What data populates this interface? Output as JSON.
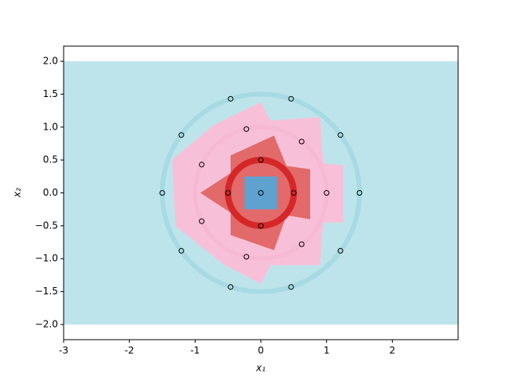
{
  "chart_data": {
    "type": "decision-regions",
    "x_label": "x₁",
    "y_label": "x₂",
    "xlim": [
      -3,
      3
    ],
    "ylim": [
      -2.23,
      2.23
    ],
    "xticks": [
      -3,
      -2,
      -1,
      0,
      1,
      2
    ],
    "yticks": [
      {
        "value": -2,
        "label": "−2.0"
      },
      {
        "value": -1.5,
        "label": "−1.5"
      },
      {
        "value": -1,
        "label": "−1.0"
      },
      {
        "value": -0.5,
        "label": "−0.5"
      },
      {
        "value": 0,
        "label": "0.0"
      },
      {
        "value": 0.5,
        "label": "0.5"
      },
      {
        "value": 1,
        "label": "1.0"
      },
      {
        "value": 1.5,
        "label": "1.5"
      },
      {
        "value": 2,
        "label": "2.0"
      }
    ],
    "regions": [
      {
        "color": "#bee4eb",
        "x": [
          -3,
          3,
          3,
          -3
        ],
        "y": [
          2,
          2,
          -2,
          -2
        ]
      },
      {
        "color": "#f8c0d8",
        "x": [
          0,
          0.15,
          0.9,
          0.95,
          1.25,
          1.25,
          0.95,
          0.9,
          0.15,
          0,
          -0.55,
          -1.3,
          -1.35,
          -0.72
        ],
        "y": [
          1.38,
          1.1,
          1.15,
          0.45,
          0.42,
          -0.45,
          -0.45,
          -1.1,
          -1.1,
          -1.38,
          -1.1,
          -0.5,
          0.5,
          1.03
        ]
      },
      {
        "color": "#e26a6a",
        "x": [
          -0.46,
          0.2,
          0.39,
          0.75,
          0.75,
          0.39,
          0.2,
          -0.46,
          -0.46,
          -0.92,
          -0.46
        ],
        "y": [
          0.57,
          0.87,
          0.41,
          0.36,
          -0.4,
          -0.34,
          -0.87,
          -0.64,
          -0.3,
          0,
          0.3
        ]
      },
      {
        "color": "#5fa1cf",
        "x": [
          -0.25,
          0.25,
          0.25,
          -0.25
        ],
        "y": [
          0.25,
          0.25,
          -0.25,
          -0.25
        ]
      }
    ],
    "rings": [
      {
        "r": 1.5,
        "color": "#a6dae4",
        "width": 6
      },
      {
        "r": 1.0,
        "color": "#f6b8d2",
        "width": 5
      },
      {
        "r": 0.5,
        "color": "#d62728",
        "width": 8
      }
    ],
    "points": {
      "x": [
        0,
        0.5,
        0,
        -0.5,
        0,
        1,
        0.62,
        -0.22,
        -0.9,
        -0.9,
        -0.22,
        0.62,
        1.5,
        1.21,
        0.46,
        -0.46,
        -1.21,
        -1.5,
        -1.21,
        -0.46,
        0.46,
        1.21
      ],
      "y": [
        0,
        0,
        0.5,
        0,
        -0.5,
        0,
        0.78,
        0.97,
        0.43,
        -0.43,
        -0.97,
        -0.78,
        0,
        0.88,
        1.43,
        1.43,
        0.88,
        0,
        -0.88,
        -1.43,
        -1.43,
        -0.88
      ]
    }
  }
}
